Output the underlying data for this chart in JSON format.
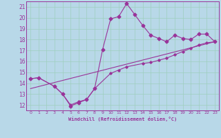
{
  "bg_color": "#b8d8e8",
  "grid_color": "#9ecebe",
  "line_color": "#993399",
  "xlabel": "Windchill (Refroidissement éolien,°C)",
  "xlim": [
    -0.5,
    23.5
  ],
  "ylim": [
    11.5,
    21.5
  ],
  "xticks": [
    0,
    1,
    2,
    3,
    4,
    5,
    6,
    7,
    8,
    9,
    10,
    11,
    12,
    13,
    14,
    15,
    16,
    17,
    18,
    19,
    20,
    21,
    22,
    23
  ],
  "yticks": [
    12,
    13,
    14,
    15,
    16,
    17,
    18,
    19,
    20,
    21
  ],
  "line1_x": [
    0,
    1,
    3,
    4,
    5,
    6,
    7,
    8,
    9,
    10,
    11,
    12,
    13,
    14,
    15,
    16,
    17,
    18,
    19,
    20,
    21,
    22,
    23
  ],
  "line1_y": [
    14.4,
    14.5,
    13.7,
    13.0,
    11.9,
    12.2,
    12.5,
    13.5,
    17.1,
    19.9,
    20.1,
    21.3,
    20.3,
    19.3,
    18.4,
    18.1,
    17.8,
    18.4,
    18.1,
    18.0,
    18.5,
    18.5,
    17.8
  ],
  "line2_x": [
    0,
    1,
    3,
    4,
    5,
    6,
    7,
    8,
    10,
    11,
    12,
    14,
    15,
    16,
    17,
    18,
    19,
    20,
    21,
    22,
    23
  ],
  "line2_y": [
    14.4,
    14.5,
    13.7,
    13.0,
    12.0,
    12.3,
    12.5,
    13.5,
    14.9,
    15.2,
    15.5,
    15.8,
    15.9,
    16.1,
    16.3,
    16.6,
    16.9,
    17.2,
    17.5,
    17.7,
    17.8
  ],
  "line3_x": [
    0,
    23
  ],
  "line3_y": [
    13.5,
    17.8
  ]
}
